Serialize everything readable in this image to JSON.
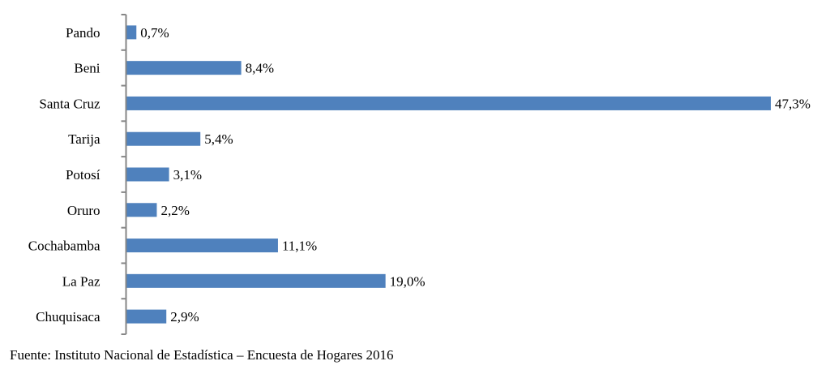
{
  "chart_data": {
    "type": "bar",
    "orientation": "horizontal",
    "categories": [
      "Pando",
      "Beni",
      "Santa Cruz",
      "Tarija",
      "Potosí",
      "Oruro",
      "Cochabamba",
      "La Paz",
      "Chuquisaca"
    ],
    "values": [
      0.7,
      8.4,
      47.3,
      5.4,
      3.1,
      2.2,
      11.1,
      19.0,
      2.9
    ],
    "value_labels": [
      "0,7%",
      "8,4%",
      "47,3%",
      "5,4%",
      "3,1%",
      "2,2%",
      "11,1%",
      "19,0%",
      "2,9%"
    ],
    "unit": "%",
    "xlim": [
      0,
      47.3
    ],
    "grid": false,
    "legend": "none",
    "bar_color": "#4f81bd"
  },
  "source": "Fuente: Instituto Nacional de Estadística – Encuesta de Hogares 2016"
}
